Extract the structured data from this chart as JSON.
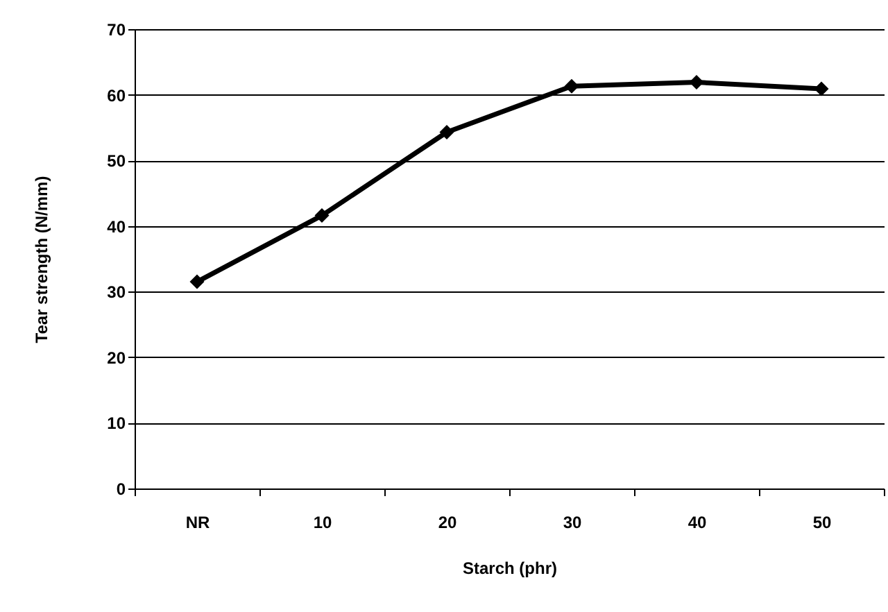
{
  "chart_data": {
    "type": "line",
    "xlabel": "Starch (phr)",
    "ylabel": "Tear strength (N/mm)",
    "categories": [
      "NR",
      "10",
      "20",
      "30",
      "40",
      "50"
    ],
    "values": [
      31.5,
      41.6,
      54.3,
      61.3,
      61.9,
      60.9
    ],
    "color": "#000000",
    "ylim": [
      0,
      70
    ],
    "yticks": [
      0,
      10,
      20,
      30,
      40,
      50,
      60,
      70
    ],
    "grid": "y",
    "marker": "diamond",
    "line_style": "solid"
  }
}
